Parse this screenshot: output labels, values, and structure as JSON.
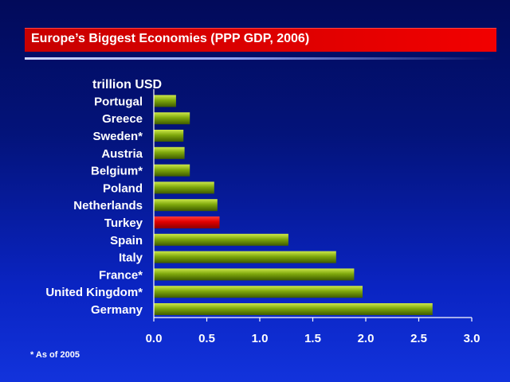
{
  "title": "Europe’s Biggest Economies (PPP GDP, 2006)",
  "footnote": "* As of 2005",
  "colors": {
    "bar": "#7ea80c",
    "highlight": "#e00000",
    "title_bar": "#d60000",
    "background": "#0618a0",
    "text": "#ffffff"
  },
  "chart_data": {
    "type": "bar",
    "orientation": "horizontal",
    "unit_label": "trillion USD",
    "categories": [
      "Portugal",
      "Greece",
      "Sweden*",
      "Austria",
      "Belgium*",
      "Poland",
      "Netherlands",
      "Turkey",
      "Spain",
      "Italy",
      "France*",
      "United Kingdom*",
      "Germany"
    ],
    "values": [
      0.21,
      0.34,
      0.28,
      0.29,
      0.34,
      0.57,
      0.6,
      0.62,
      1.27,
      1.72,
      1.89,
      1.97,
      2.63
    ],
    "highlight_category": "Turkey",
    "xlim": [
      0.0,
      3.0
    ],
    "xticks": [
      "0.0",
      "0.5",
      "1.0",
      "1.5",
      "2.0",
      "2.5",
      "3.0"
    ],
    "grid": false,
    "legend": "none"
  }
}
